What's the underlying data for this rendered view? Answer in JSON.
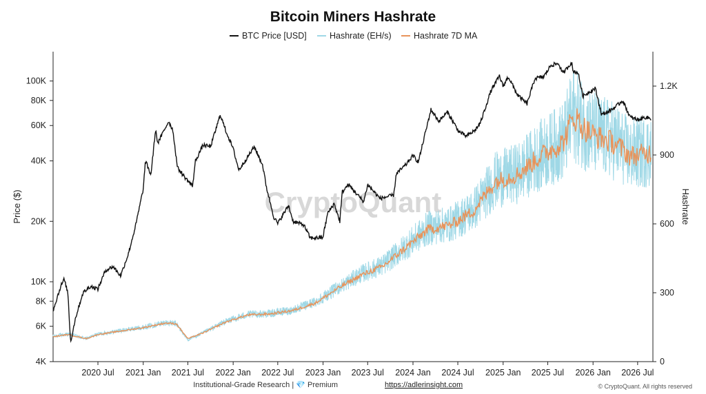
{
  "chart_data": {
    "type": "line",
    "title": "Bitcoin Miners Hashrate",
    "watermark": "CryptoQuant",
    "legend": {
      "position": "top-center",
      "entries": [
        "BTC Price [USD]",
        "Hashrate (EH/s)",
        "Hashrate 7D MA"
      ]
    },
    "y_left": {
      "label": "Price ($)",
      "scale": "log",
      "range": [
        4000,
        140000
      ],
      "ticks": [
        4000,
        6000,
        8000,
        10000,
        20000,
        40000,
        60000,
        80000,
        100000
      ],
      "tick_labels": [
        "4K",
        "6K",
        "8K",
        "10K",
        "20K",
        "40K",
        "60K",
        "80K",
        "100K"
      ]
    },
    "y_right": {
      "label": "Hashrate",
      "scale": "linear",
      "range": [
        0,
        1350
      ],
      "ticks": [
        0,
        300,
        600,
        900,
        1200
      ],
      "tick_labels": [
        "0",
        "300",
        "600",
        "900",
        "1.2K"
      ]
    },
    "x_axis": {
      "range": [
        "2020-01-01",
        "2026-09-01"
      ],
      "ticks": [
        "2020-07-01",
        "2021-01-01",
        "2021-07-01",
        "2022-01-01",
        "2022-07-01",
        "2023-01-01",
        "2023-07-01",
        "2024-01-01",
        "2024-07-01",
        "2025-01-01",
        "2025-07-01",
        "2026-01-01",
        "2026-07-01"
      ],
      "tick_labels": [
        "2020 Jul",
        "2021 Jan",
        "2021 Jul",
        "2022 Jan",
        "2022 Jul",
        "2023 Jan",
        "2023 Jul",
        "2024 Jan",
        "2024 Jul",
        "2025 Jan",
        "2025 Jul",
        "2026 Jan",
        "2026 Jul"
      ]
    },
    "series": [
      {
        "name": "BTC Price [USD]",
        "axis": "left",
        "color": "#111111",
        "points": [
          [
            "2020-01-01",
            7200
          ],
          [
            "2020-02-01",
            9500
          ],
          [
            "2020-02-15",
            10300
          ],
          [
            "2020-03-01",
            8800
          ],
          [
            "2020-03-12",
            5000
          ],
          [
            "2020-04-01",
            6600
          ],
          [
            "2020-05-01",
            8800
          ],
          [
            "2020-06-01",
            9500
          ],
          [
            "2020-07-01",
            9200
          ],
          [
            "2020-08-01",
            11400
          ],
          [
            "2020-09-01",
            11900
          ],
          [
            "2020-10-01",
            10700
          ],
          [
            "2020-11-01",
            13700
          ],
          [
            "2020-12-01",
            19000
          ],
          [
            "2021-01-01",
            29000
          ],
          [
            "2021-01-10",
            40000
          ],
          [
            "2021-02-01",
            34000
          ],
          [
            "2021-02-20",
            57000
          ],
          [
            "2021-03-01",
            49000
          ],
          [
            "2021-04-14",
            63000
          ],
          [
            "2021-05-01",
            57000
          ],
          [
            "2021-05-20",
            37000
          ],
          [
            "2021-06-20",
            33000
          ],
          [
            "2021-07-20",
            30000
          ],
          [
            "2021-08-01",
            40000
          ],
          [
            "2021-09-01",
            48000
          ],
          [
            "2021-10-01",
            47000
          ],
          [
            "2021-11-10",
            68000
          ],
          [
            "2021-12-01",
            57000
          ],
          [
            "2022-01-01",
            46000
          ],
          [
            "2022-01-24",
            36000
          ],
          [
            "2022-03-28",
            47000
          ],
          [
            "2022-05-01",
            38000
          ],
          [
            "2022-05-15",
            30000
          ],
          [
            "2022-06-15",
            21000
          ],
          [
            "2022-07-01",
            19500
          ],
          [
            "2022-08-14",
            24000
          ],
          [
            "2022-09-01",
            20000
          ],
          [
            "2022-10-15",
            19200
          ],
          [
            "2022-11-10",
            16500
          ],
          [
            "2022-12-31",
            16600
          ],
          [
            "2023-01-20",
            22000
          ],
          [
            "2023-02-15",
            24500
          ],
          [
            "2023-03-10",
            20000
          ],
          [
            "2023-03-20",
            28000
          ],
          [
            "2023-04-14",
            30500
          ],
          [
            "2023-06-15",
            25000
          ],
          [
            "2023-07-01",
            30500
          ],
          [
            "2023-08-20",
            26000
          ],
          [
            "2023-10-15",
            27000
          ],
          [
            "2023-10-25",
            34500
          ],
          [
            "2023-12-01",
            38000
          ],
          [
            "2024-01-01",
            42500
          ],
          [
            "2024-01-23",
            39500
          ],
          [
            "2024-02-15",
            52000
          ],
          [
            "2024-03-14",
            72000
          ],
          [
            "2024-04-15",
            63000
          ],
          [
            "2024-05-20",
            70000
          ],
          [
            "2024-07-05",
            56000
          ],
          [
            "2024-08-05",
            53000
          ],
          [
            "2024-09-10",
            57000
          ],
          [
            "2024-10-01",
            62000
          ],
          [
            "2024-11-12",
            89000
          ],
          [
            "2024-12-17",
            106000
          ],
          [
            "2025-01-01",
            94000
          ],
          [
            "2025-01-22",
            105000
          ],
          [
            "2025-03-01",
            85000
          ],
          [
            "2025-04-08",
            77000
          ],
          [
            "2025-05-10",
            103000
          ],
          [
            "2025-06-15",
            105000
          ],
          [
            "2025-07-14",
            120000
          ],
          [
            "2025-08-14",
            122000
          ],
          [
            "2025-09-01",
            109000
          ],
          [
            "2025-10-06",
            124000
          ],
          [
            "2025-10-11",
            112000
          ],
          [
            "2025-11-01",
            110000
          ],
          [
            "2025-11-21",
            84000
          ],
          [
            "2025-12-15",
            88000
          ],
          [
            "2026-01-10",
            92000
          ],
          [
            "2026-02-05",
            68000
          ],
          [
            "2026-03-01",
            70000
          ],
          [
            "2026-04-01",
            74000
          ],
          [
            "2026-05-01",
            80000
          ],
          [
            "2026-06-01",
            66000
          ],
          [
            "2026-07-01",
            64000
          ],
          [
            "2026-08-01",
            66000
          ],
          [
            "2026-08-25",
            65000
          ]
        ]
      },
      {
        "name": "Hashrate (EH/s)",
        "axis": "right",
        "color": "#9fd8e6",
        "style": "noisy-daily",
        "points": [
          [
            "2020-01-01",
            110
          ],
          [
            "2020-03-01",
            120
          ],
          [
            "2020-05-15",
            100
          ],
          [
            "2020-07-01",
            120
          ],
          [
            "2020-10-01",
            135
          ],
          [
            "2021-01-01",
            150
          ],
          [
            "2021-04-01",
            170
          ],
          [
            "2021-05-15",
            165
          ],
          [
            "2021-07-01",
            95
          ],
          [
            "2021-09-01",
            125
          ],
          [
            "2021-12-01",
            175
          ],
          [
            "2022-03-01",
            205
          ],
          [
            "2022-06-01",
            210
          ],
          [
            "2022-09-01",
            225
          ],
          [
            "2022-12-01",
            260
          ],
          [
            "2023-03-01",
            320
          ],
          [
            "2023-06-01",
            380
          ],
          [
            "2023-09-01",
            420
          ],
          [
            "2023-12-01",
            500
          ],
          [
            "2024-03-01",
            580
          ],
          [
            "2024-06-01",
            600
          ],
          [
            "2024-09-01",
            660
          ],
          [
            "2024-12-01",
            790
          ],
          [
            "2025-03-01",
            820
          ],
          [
            "2025-06-01",
            900
          ],
          [
            "2025-09-01",
            960
          ],
          [
            "2025-10-15",
            1080
          ],
          [
            "2025-12-01",
            1020
          ],
          [
            "2026-01-15",
            990
          ],
          [
            "2026-04-01",
            960
          ],
          [
            "2026-06-01",
            900
          ],
          [
            "2026-08-25",
            920
          ]
        ]
      },
      {
        "name": "Hashrate 7D MA",
        "axis": "right",
        "color": "#e8935a",
        "points": [
          [
            "2020-01-01",
            108
          ],
          [
            "2020-03-01",
            118
          ],
          [
            "2020-05-15",
            100
          ],
          [
            "2020-07-01",
            118
          ],
          [
            "2020-10-01",
            133
          ],
          [
            "2021-01-01",
            148
          ],
          [
            "2021-04-01",
            168
          ],
          [
            "2021-05-15",
            165
          ],
          [
            "2021-07-01",
            100
          ],
          [
            "2021-09-01",
            125
          ],
          [
            "2021-12-01",
            172
          ],
          [
            "2022-03-01",
            203
          ],
          [
            "2022-06-01",
            208
          ],
          [
            "2022-09-01",
            223
          ],
          [
            "2022-12-01",
            255
          ],
          [
            "2023-03-01",
            318
          ],
          [
            "2023-06-01",
            375
          ],
          [
            "2023-09-01",
            415
          ],
          [
            "2023-12-01",
            495
          ],
          [
            "2024-03-01",
            575
          ],
          [
            "2024-06-01",
            595
          ],
          [
            "2024-09-01",
            655
          ],
          [
            "2024-12-01",
            785
          ],
          [
            "2025-03-01",
            815
          ],
          [
            "2025-06-01",
            895
          ],
          [
            "2025-09-01",
            955
          ],
          [
            "2025-10-15",
            1070
          ],
          [
            "2025-12-01",
            1010
          ],
          [
            "2026-01-15",
            980
          ],
          [
            "2026-04-01",
            950
          ],
          [
            "2026-06-01",
            895
          ],
          [
            "2026-08-25",
            910
          ]
        ]
      }
    ]
  },
  "footer": {
    "text": "Institutional-Grade Research | 💎 Premium",
    "link": "https://adlerinsight.com",
    "copyright": "© CryptoQuant. All rights reserved"
  }
}
